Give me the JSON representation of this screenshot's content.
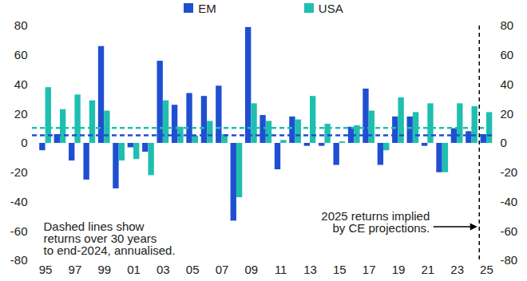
{
  "chart_data": {
    "type": "bar",
    "categories": [
      "95",
      null,
      "97",
      null,
      "99",
      null,
      "01",
      null,
      "03",
      null,
      "05",
      null,
      "07",
      null,
      "09",
      null,
      "11",
      null,
      "13",
      null,
      "15",
      null,
      "17",
      null,
      "19",
      null,
      "21",
      null,
      "23",
      null,
      "25"
    ],
    "series": [
      {
        "name": "EM",
        "color": "#1f4fd1",
        "values": [
          -5,
          6,
          -12,
          -25,
          66,
          -31,
          -3,
          -6,
          56,
          26,
          34,
          32,
          39,
          -53,
          79,
          19,
          -18,
          18,
          -2,
          -2,
          -15,
          11,
          37,
          -15,
          18,
          18,
          -2,
          -20,
          10,
          8,
          6
        ],
        "average_30y": 5.5
      },
      {
        "name": "USA",
        "color": "#1fbfb0",
        "values": [
          38,
          23,
          33,
          29,
          22,
          -12,
          -11,
          -22,
          29,
          11,
          5,
          15,
          6,
          -37,
          27,
          15,
          2,
          16,
          32,
          13,
          1,
          12,
          22,
          -5,
          31,
          21,
          27,
          -20,
          27,
          25,
          21
        ],
        "average_30y": 10.5
      }
    ],
    "ylim": [
      -80,
      80
    ],
    "yticks": [
      -80,
      -60,
      -40,
      -20,
      0,
      20,
      40,
      60,
      80
    ],
    "legend": "top",
    "annotations": [
      {
        "text": "Dashed lines show\nreturns over 30 years\nto end-2024, annualised."
      },
      {
        "text": "2025 returns implied\nby CE projections.",
        "at_category": "25"
      }
    ]
  }
}
